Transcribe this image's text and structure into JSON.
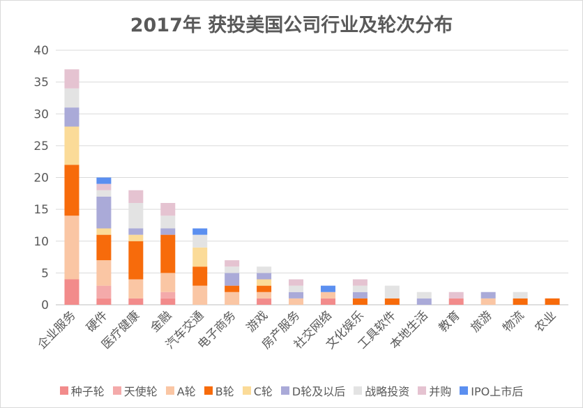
{
  "chart_data": {
    "type": "bar",
    "stacked": true,
    "title": "2017年 获投美国公司行业及轮次分布",
    "xlabel": "",
    "ylabel": "",
    "ylim": [
      0,
      40
    ],
    "yticks": [
      0,
      5,
      10,
      15,
      20,
      25,
      30,
      35,
      40
    ],
    "grid": true,
    "legend_position": "bottom",
    "categories": [
      "企业服务",
      "硬件",
      "医疗健康",
      "金融",
      "汽车交通",
      "电子商务",
      "游戏",
      "房产服务",
      "社交网络",
      "文化娱乐",
      "工具软件",
      "本地生活",
      "教育",
      "旅游",
      "物流",
      "农业"
    ],
    "series": [
      {
        "name": "种子轮",
        "color": "#f28b8b",
        "values": [
          4,
          1,
          1,
          1,
          0,
          0,
          1,
          0,
          1,
          0,
          0,
          0,
          1,
          0,
          0,
          0
        ]
      },
      {
        "name": "天使轮",
        "color": "#f4aaaa",
        "values": [
          0,
          2,
          0,
          1,
          0,
          0,
          0,
          0,
          0,
          0,
          0,
          0,
          0,
          0,
          0,
          0
        ]
      },
      {
        "name": "A轮",
        "color": "#fac6a4",
        "values": [
          10,
          4,
          3,
          3,
          3,
          2,
          1,
          1,
          1,
          0,
          0,
          0,
          0,
          1,
          0,
          0
        ]
      },
      {
        "name": "B轮",
        "color": "#f76b0b",
        "values": [
          8,
          4,
          6,
          6,
          3,
          1,
          1,
          0,
          0,
          1,
          1,
          0,
          0,
          0,
          1,
          1
        ]
      },
      {
        "name": "C轮",
        "color": "#fbdb98",
        "values": [
          6,
          1,
          1,
          0,
          3,
          0,
          1,
          0,
          0,
          0,
          0,
          0,
          0,
          0,
          0,
          0
        ]
      },
      {
        "name": "D轮及以后",
        "color": "#aaaad8",
        "values": [
          3,
          5,
          1,
          1,
          0,
          2,
          1,
          1,
          0,
          1,
          0,
          1,
          0,
          1,
          0,
          0
        ]
      },
      {
        "name": "战略投资",
        "color": "#e3e3e3",
        "values": [
          3,
          1,
          4,
          2,
          2,
          1,
          1,
          1,
          0,
          1,
          2,
          1,
          0,
          0,
          1,
          0
        ]
      },
      {
        "name": "并购",
        "color": "#e5c3d1",
        "values": [
          3,
          1,
          2,
          2,
          0,
          1,
          0,
          1,
          0,
          1,
          0,
          0,
          1,
          0,
          0,
          0
        ]
      },
      {
        "name": "IPO上市后",
        "color": "#5b8ff0",
        "values": [
          0,
          1,
          0,
          0,
          1,
          0,
          0,
          0,
          1,
          0,
          0,
          0,
          0,
          0,
          0,
          0
        ]
      }
    ]
  }
}
